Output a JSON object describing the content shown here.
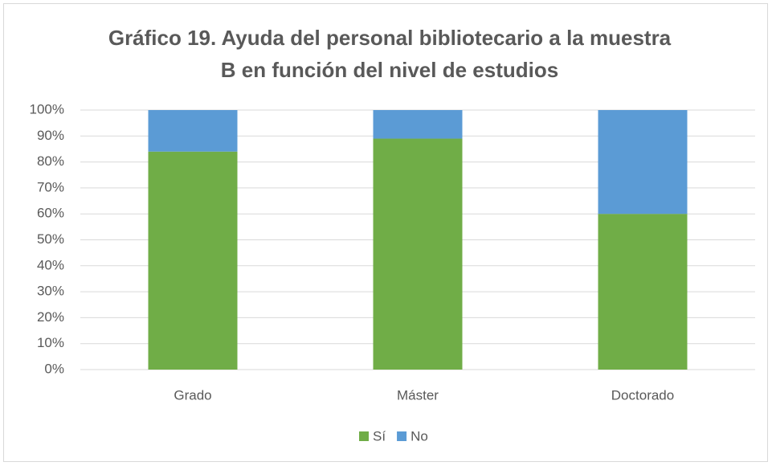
{
  "chart_data": {
    "type": "stacked_bar",
    "title": [
      "Gráfico 19. Ayuda del personal bibliotecario a la muestra",
      "B en función del nivel de estudios"
    ],
    "categories": [
      "Grado",
      "Máster",
      "Doctorado"
    ],
    "series": [
      {
        "name": "Sí",
        "color": "#70ad47",
        "values": [
          84,
          89,
          60
        ]
      },
      {
        "name": "No",
        "color": "#5b9bd5",
        "values": [
          16,
          11,
          40
        ]
      }
    ],
    "ylim": [
      0,
      100
    ],
    "yticks": [
      {
        "value": 0,
        "label": "0%"
      },
      {
        "value": 10,
        "label": "10%"
      },
      {
        "value": 20,
        "label": "20%"
      },
      {
        "value": 30,
        "label": "30%"
      },
      {
        "value": 40,
        "label": "40%"
      },
      {
        "value": 50,
        "label": "50%"
      },
      {
        "value": 60,
        "label": "60%"
      },
      {
        "value": 70,
        "label": "70%"
      },
      {
        "value": 80,
        "label": "80%"
      },
      {
        "value": 90,
        "label": "90%"
      },
      {
        "value": 100,
        "label": "100%"
      }
    ],
    "grid": true,
    "legend": "bottom"
  }
}
